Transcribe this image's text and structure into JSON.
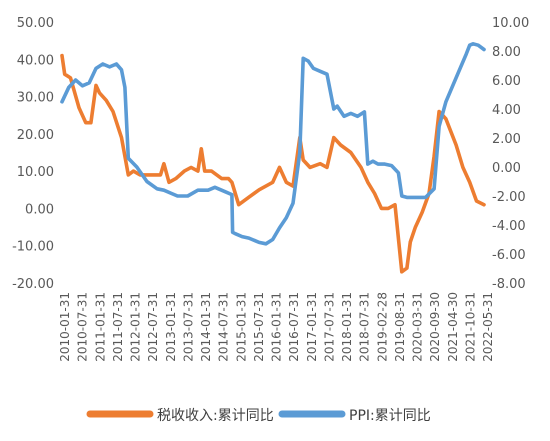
{
  "chart_data": {
    "type": "line",
    "title": "",
    "xlabel": "",
    "ylabel": "",
    "grid": false,
    "legend_position": "bottom",
    "categories": [
      "2010-01-31",
      "2010-07-31",
      "2011-01-31",
      "2011-07-31",
      "2012-01-31",
      "2012-07-31",
      "2013-01-31",
      "2013-07-31",
      "2014-01-31",
      "2014-07-31",
      "2015-01-31",
      "2015-07-31",
      "2016-01-31",
      "2016-07-31",
      "2017-01-31",
      "2017-07-31",
      "2018-01-31",
      "2018-07-31",
      "2019-02-28",
      "2019-08-31",
      "2020-03-31",
      "2020-09-30",
      "2021-04-30",
      "2021-10-31",
      "2022-05-31"
    ],
    "left_axis": {
      "ylim": [
        -20,
        50
      ],
      "ticks": [
        "-20.00",
        "-10.00",
        "0.00",
        "10.00",
        "20.00",
        "30.00",
        "40.00",
        "50.00"
      ]
    },
    "right_axis": {
      "ylim": [
        -8,
        10
      ],
      "ticks": [
        "-8.00",
        "-6.00",
        "-4.00",
        "-2.00",
        "0.00",
        "2.00",
        "4.00",
        "6.00",
        "8.00",
        "10.00"
      ]
    },
    "series": [
      {
        "name": "税收收入:累计同比",
        "axis": "left",
        "color": "#ED7D31",
        "x": [
          2010.0,
          2010.08,
          2010.25,
          2010.5,
          2010.7,
          2010.85,
          2011.0,
          2011.1,
          2011.3,
          2011.5,
          2011.75,
          2011.95,
          2012.1,
          2012.3,
          2012.6,
          2012.9,
          2013.0,
          2013.15,
          2013.35,
          2013.6,
          2013.8,
          2014.0,
          2014.1,
          2014.2,
          2014.4,
          2014.7,
          2014.9,
          2015.0,
          2015.2,
          2015.5,
          2015.8,
          2016.0,
          2016.2,
          2016.4,
          2016.6,
          2016.8,
          2017.0,
          2017.1,
          2017.3,
          2017.6,
          2017.8,
          2018.0,
          2018.2,
          2018.5,
          2018.8,
          2019.0,
          2019.2,
          2019.4,
          2019.6,
          2019.8,
          2020.0,
          2020.15,
          2020.25,
          2020.4,
          2020.6,
          2020.8,
          2020.95,
          2021.1,
          2021.3,
          2021.6,
          2021.8,
          2022.0,
          2022.2,
          2022.42
        ],
        "values": [
          41,
          36,
          35,
          27,
          23,
          23,
          33,
          31,
          29,
          26,
          19,
          9,
          10,
          9,
          9,
          9,
          12,
          7,
          8,
          10,
          11,
          10,
          16,
          10,
          10,
          8,
          8,
          7,
          1,
          3,
          5,
          6,
          7,
          11,
          7,
          6,
          19,
          13,
          11,
          12,
          11,
          19,
          17,
          15,
          11,
          7,
          4,
          0,
          0,
          1,
          -17,
          -16,
          -9,
          -5,
          -1,
          4,
          14,
          26,
          24,
          17,
          11,
          7,
          2,
          1
        ]
      },
      {
        "name": "PPI:累计同比",
        "axis": "right",
        "color": "#5B9BD5",
        "x": [
          2010.0,
          2010.2,
          2010.4,
          2010.6,
          2010.8,
          2011.0,
          2011.2,
          2011.4,
          2011.6,
          2011.75,
          2011.85,
          2011.95,
          2012.2,
          2012.5,
          2012.8,
          2013.0,
          2013.2,
          2013.4,
          2013.7,
          2014.0,
          2014.3,
          2014.5,
          2014.8,
          2015.0,
          2015.02,
          2015.1,
          2015.3,
          2015.5,
          2015.8,
          2016.0,
          2016.2,
          2016.4,
          2016.6,
          2016.8,
          2017.0,
          2017.1,
          2017.25,
          2017.4,
          2017.6,
          2017.8,
          2018.0,
          2018.1,
          2018.3,
          2018.5,
          2018.7,
          2018.9,
          2019.0,
          2019.15,
          2019.3,
          2019.5,
          2019.7,
          2019.9,
          2020.0,
          2020.15,
          2020.3,
          2020.5,
          2020.7,
          2020.95,
          2021.1,
          2021.3,
          2021.5,
          2021.7,
          2021.9,
          2022.0,
          2022.1,
          2022.25,
          2022.42
        ],
        "values": [
          4.5,
          5.5,
          6.0,
          5.6,
          5.8,
          6.8,
          7.1,
          6.9,
          7.1,
          6.7,
          5.5,
          0.6,
          0.0,
          -1.0,
          -1.5,
          -1.6,
          -1.8,
          -2.0,
          -2.0,
          -1.6,
          -1.6,
          -1.4,
          -1.7,
          -1.9,
          -4.5,
          -4.6,
          -4.8,
          -4.9,
          -5.2,
          -5.3,
          -5.0,
          -4.2,
          -3.5,
          -2.5,
          1.0,
          7.5,
          7.3,
          6.8,
          6.6,
          6.4,
          4.0,
          4.2,
          3.5,
          3.7,
          3.5,
          3.8,
          0.2,
          0.4,
          0.2,
          0.2,
          0.1,
          -0.4,
          -2.0,
          -2.1,
          -2.1,
          -2.1,
          -2.1,
          -1.5,
          2.8,
          4.5,
          5.6,
          6.7,
          7.8,
          8.4,
          8.5,
          8.4,
          8.1
        ]
      }
    ]
  }
}
